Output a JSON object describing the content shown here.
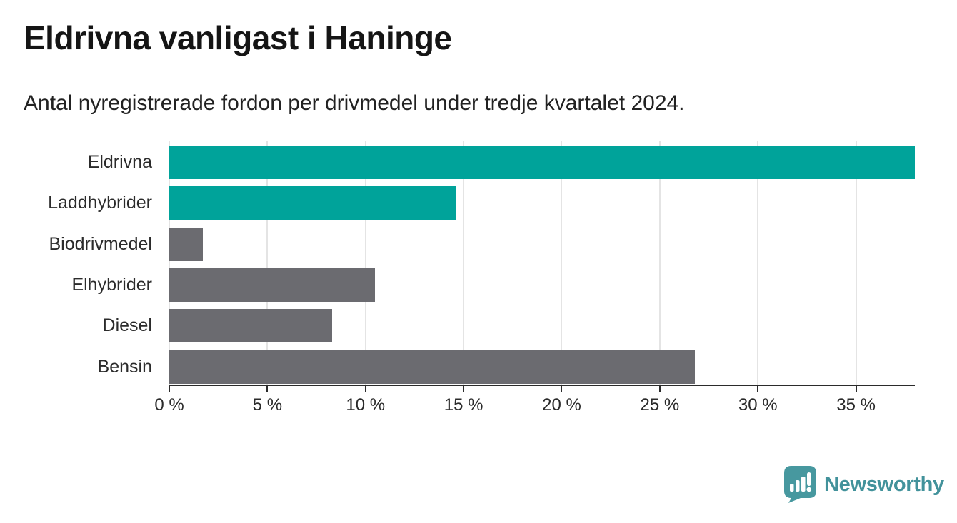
{
  "header": {
    "title": "Eldrivna vanligast i Haninge",
    "subtitle": "Antal nyregistrerade fordon per drivmedel under tredje kvartalet 2024."
  },
  "chart_data": {
    "type": "bar",
    "orientation": "horizontal",
    "title": "Eldrivna vanligast i Haninge",
    "subtitle": "Antal nyregistrerade fordon per drivmedel under tredje kvartalet 2024.",
    "categories": [
      "Eldrivna",
      "Laddhybrider",
      "Biodrivmedel",
      "Elhybrider",
      "Diesel",
      "Bensin"
    ],
    "values": [
      38.0,
      14.6,
      1.7,
      10.5,
      8.3,
      26.8
    ],
    "unit": "%",
    "xlim": [
      0,
      38
    ],
    "x_ticks": [
      0,
      5,
      10,
      15,
      20,
      25,
      30,
      35
    ],
    "x_tick_labels": [
      "0 %",
      "5 %",
      "10 %",
      "15 %",
      "20 %",
      "25 %",
      "30 %",
      "35 %"
    ],
    "bar_colors": [
      "#00a39a",
      "#00a39a",
      "#6b6b70",
      "#6b6b70",
      "#6b6b70",
      "#6b6b70"
    ],
    "highlight_color": "#00a39a",
    "default_color": "#6b6b70",
    "grid": true,
    "gridline_color": "#e4e4e4",
    "axis_color": "#2b2b2b",
    "xlabel": "",
    "ylabel": ""
  },
  "footer": {
    "brand": "Newsworthy",
    "brand_color": "#42929b",
    "logo_icon": "newsworthy-speech-bubble-chart-icon"
  }
}
